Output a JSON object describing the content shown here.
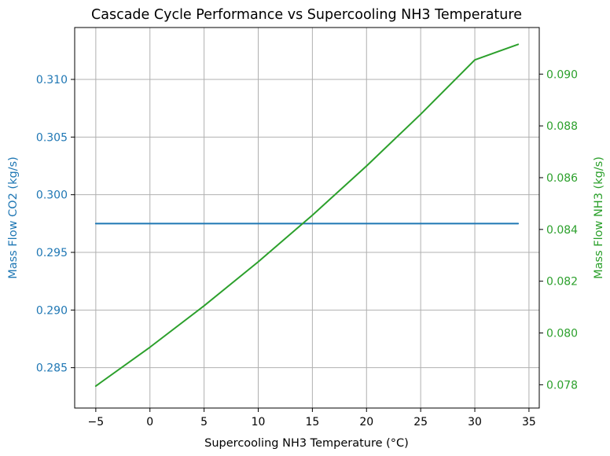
{
  "chart_data": {
    "type": "line",
    "title": "Cascade Cycle Performance vs Supercooling NH3 Temperature",
    "xlabel": "Supercooling NH3 Temperature (°C)",
    "ylabel_left": "Mass Flow CO2 (kg/s)",
    "ylabel_right": "Mass Flow NH3 (kg/s)",
    "xlim": [
      -6.95,
      35.95
    ],
    "ylim_left": [
      0.2815,
      0.3145
    ],
    "ylim_right": [
      0.0771,
      0.0918
    ],
    "grid": true,
    "x_ticks": [
      -5,
      0,
      5,
      10,
      15,
      20,
      25,
      30,
      35
    ],
    "x_tick_labels": [
      "−5",
      "0",
      "5",
      "10",
      "15",
      "20",
      "25",
      "30",
      "35"
    ],
    "left_ticks": [
      0.285,
      0.29,
      0.295,
      0.3,
      0.305,
      0.31
    ],
    "left_tick_labels": [
      "0.285",
      "0.290",
      "0.295",
      "0.300",
      "0.305",
      "0.310"
    ],
    "right_ticks": [
      0.078,
      0.08,
      0.082,
      0.084,
      0.086,
      0.088,
      0.09
    ],
    "right_tick_labels": [
      "0.078",
      "0.080",
      "0.082",
      "0.084",
      "0.086",
      "0.088",
      "0.090"
    ],
    "colors": {
      "co2": "#1f77b4",
      "nh3": "#2ca02c"
    },
    "series": [
      {
        "axis": "left",
        "x": [
          -5,
          0,
          5,
          10,
          15,
          20,
          25,
          30,
          34
        ],
        "values": [
          0.2975,
          0.2975,
          0.2975,
          0.2975,
          0.2975,
          0.2975,
          0.2975,
          0.2975,
          0.2975
        ]
      },
      {
        "axis": "right",
        "x": [
          -5,
          0,
          5,
          10,
          15,
          20,
          25,
          30,
          34
        ],
        "values": [
          0.07795,
          0.07945,
          0.08105,
          0.08275,
          0.08455,
          0.08645,
          0.08845,
          0.09055,
          0.09115
        ]
      }
    ]
  }
}
